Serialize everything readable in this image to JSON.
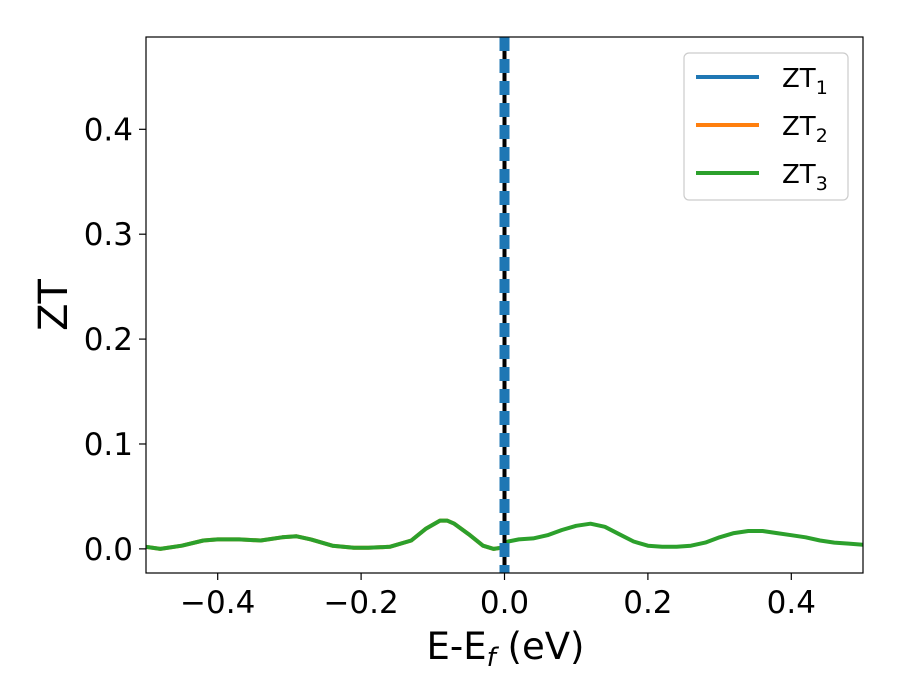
{
  "chart_data": {
    "type": "line",
    "title": "",
    "xlabel": {
      "main": "E-E",
      "sub": "f",
      "unit": " (eV)"
    },
    "ylabel": "ZT",
    "xlim": [
      -0.5,
      0.5
    ],
    "ylim": [
      -0.023,
      0.488
    ],
    "xticks": [
      {
        "value": -0.4,
        "label": "−0.4"
      },
      {
        "value": -0.2,
        "label": "−0.2"
      },
      {
        "value": 0.0,
        "label": "0.0"
      },
      {
        "value": 0.2,
        "label": "0.2"
      },
      {
        "value": 0.4,
        "label": "0.4"
      }
    ],
    "yticks": [
      {
        "value": 0.0,
        "label": "0.0"
      },
      {
        "value": 0.1,
        "label": "0.1"
      },
      {
        "value": 0.2,
        "label": "0.2"
      },
      {
        "value": 0.3,
        "label": "0.3"
      },
      {
        "value": 0.4,
        "label": "0.4"
      }
    ],
    "grid": false,
    "legend_position": "top-right",
    "series": [
      {
        "name": "ZT",
        "sub": "1",
        "color": "#1f77b4",
        "x": [
          -0.005,
          -0.005,
          0.005,
          0.005
        ],
        "y": [
          0.488,
          -0.023,
          -0.023,
          0.488
        ]
      },
      {
        "name": "ZT",
        "sub": "2",
        "color": "#ff7f0e",
        "x": [
          -0.5,
          -0.48,
          -0.45,
          -0.42,
          -0.4,
          -0.37,
          -0.34,
          -0.31,
          -0.29,
          -0.27,
          -0.24,
          -0.21,
          -0.19,
          -0.16,
          -0.13,
          -0.11,
          -0.09,
          -0.08,
          -0.07,
          -0.05,
          -0.03,
          -0.015,
          -0.005
        ],
        "y": [
          0.002,
          0.0,
          0.003,
          0.008,
          0.009,
          0.009,
          0.008,
          0.011,
          0.012,
          0.009,
          0.003,
          0.001,
          0.001,
          0.002,
          0.008,
          0.019,
          0.027,
          0.027,
          0.024,
          0.014,
          0.003,
          0.0,
          0.001
        ]
      },
      {
        "name": "ZT",
        "sub": "3",
        "color": "#2ca02c",
        "x": [
          -0.5,
          -0.48,
          -0.45,
          -0.42,
          -0.4,
          -0.37,
          -0.34,
          -0.31,
          -0.29,
          -0.27,
          -0.24,
          -0.21,
          -0.19,
          -0.16,
          -0.13,
          -0.11,
          -0.09,
          -0.08,
          -0.07,
          -0.05,
          -0.03,
          -0.015,
          -0.005
        ],
        "y": [
          0.002,
          0.0,
          0.003,
          0.008,
          0.009,
          0.009,
          0.008,
          0.011,
          0.012,
          0.009,
          0.003,
          0.001,
          0.001,
          0.002,
          0.008,
          0.019,
          0.027,
          0.027,
          0.024,
          0.014,
          0.003,
          0.0,
          0.001
        ]
      },
      {
        "name": "",
        "sub": "",
        "color": "#2ca02c",
        "legend": false,
        "x": [
          0.005,
          0.02,
          0.04,
          0.06,
          0.08,
          0.1,
          0.12,
          0.14,
          0.16,
          0.18,
          0.2,
          0.22,
          0.24,
          0.26,
          0.28,
          0.3,
          0.32,
          0.34,
          0.36,
          0.38,
          0.4,
          0.42,
          0.44,
          0.46,
          0.48,
          0.5
        ],
        "y": [
          0.007,
          0.009,
          0.01,
          0.013,
          0.018,
          0.022,
          0.024,
          0.021,
          0.014,
          0.007,
          0.003,
          0.002,
          0.002,
          0.003,
          0.006,
          0.011,
          0.015,
          0.017,
          0.017,
          0.015,
          0.013,
          0.011,
          0.008,
          0.006,
          0.005,
          0.004
        ]
      }
    ],
    "vertical_line": {
      "x": 0.0,
      "style": "dashed",
      "color": "#000000"
    }
  }
}
